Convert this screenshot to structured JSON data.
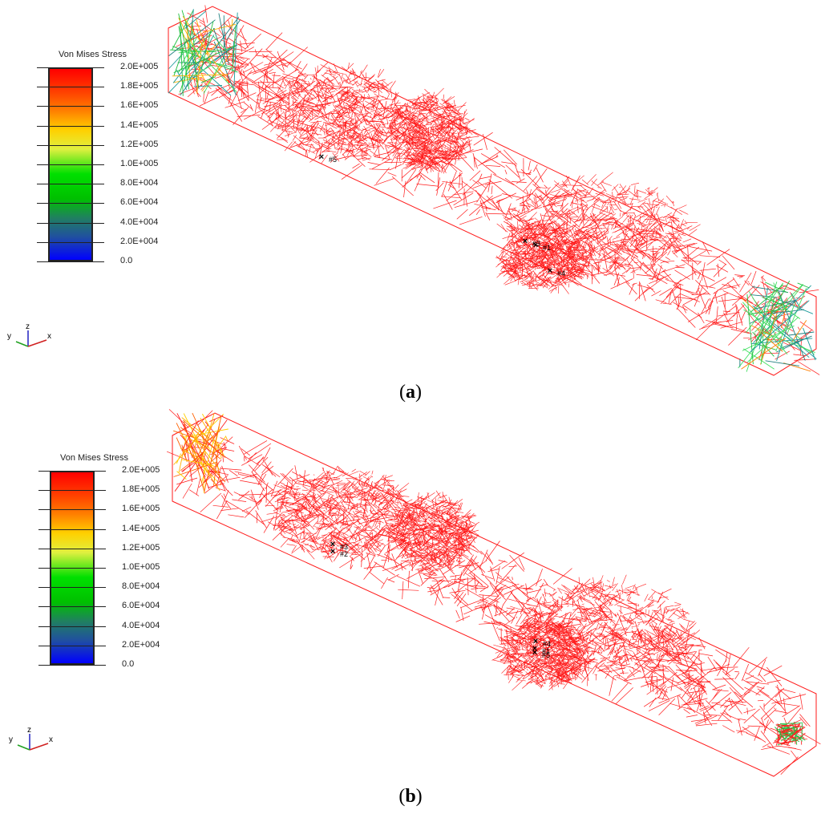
{
  "legend_title": "Von Mises Stress",
  "legend_labels": [
    "2.0E+005",
    "1.8E+005",
    "1.6E+005",
    "1.4E+005",
    "1.2E+005",
    "1.0E+005",
    "8.0E+004",
    "6.0E+004",
    "4.0E+004",
    "2.0E+004",
    "0.0"
  ],
  "colors": {
    "stress_high": "#ff0000",
    "stress_low": "#0000ff",
    "mesh": "#ff1a1a",
    "marker": "#000000"
  },
  "axes": {
    "x": "x",
    "y": "y",
    "z": "z"
  },
  "panels": [
    {
      "caption_open": "(",
      "caption_letter": "a",
      "caption_close": ")",
      "markers": [
        "#5",
        "#3",
        "#1",
        "#4"
      ]
    },
    {
      "caption_open": "(",
      "caption_letter": "b",
      "caption_close": ")",
      "markers": [
        "#3",
        "#2",
        "#4",
        "#1",
        "#5"
      ]
    }
  ]
}
